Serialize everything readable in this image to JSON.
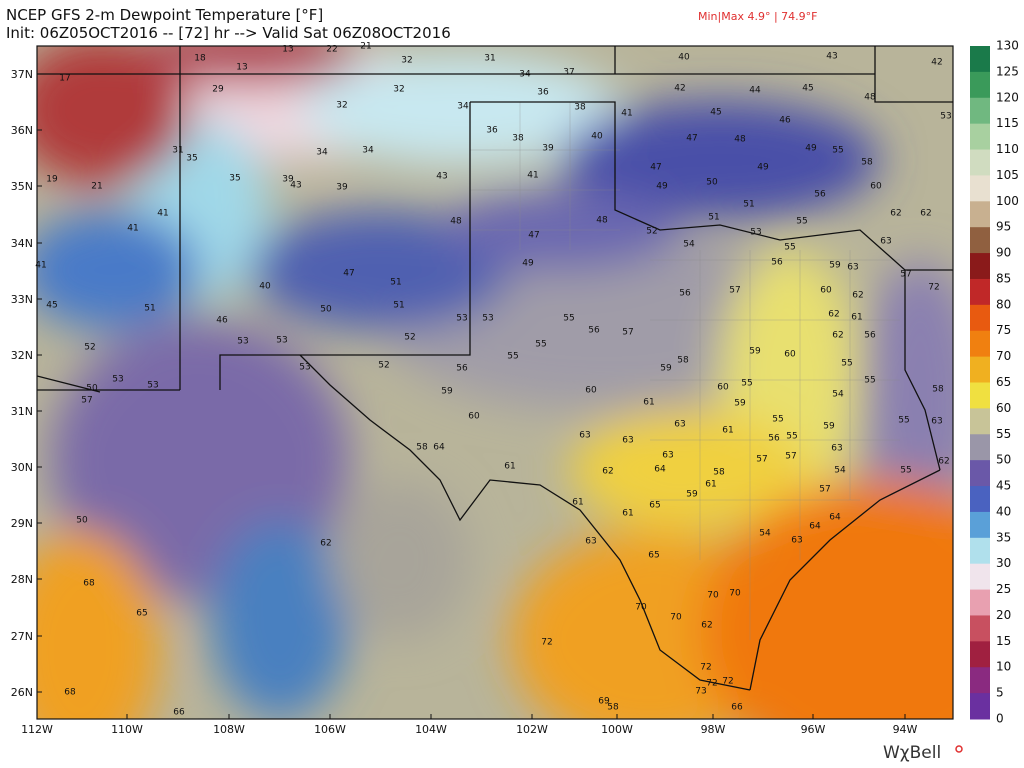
{
  "header": {
    "title": "NCEP GFS 2-m Dewpoint Temperature [°F]",
    "init": "Init: 06Z05OCT2016 -- [72] hr --> Valid Sat 06Z08OCT2016",
    "minmax": "Min|Max 4.9° | 74.9°F"
  },
  "lat_labels": [
    "37N",
    "36N",
    "35N",
    "34N",
    "33N",
    "32N",
    "31N",
    "30N",
    "29N",
    "28N",
    "27N",
    "26N"
  ],
  "lon_labels": [
    "112W",
    "110W",
    "108W",
    "106W",
    "104W",
    "102W",
    "100W",
    "98W",
    "96W",
    "94W"
  ],
  "colorbar": {
    "labels": [
      130,
      125,
      120,
      115,
      110,
      105,
      100,
      95,
      90,
      85,
      80,
      75,
      70,
      65,
      60,
      55,
      50,
      45,
      40,
      35,
      30,
      25,
      20,
      15,
      10,
      5,
      0
    ],
    "colors": [
      "#1a7a4a",
      "#3a9a5a",
      "#70b880",
      "#a8d0a0",
      "#d0dcc0",
      "#e8e0d0",
      "#c8b090",
      "#906040",
      "#8a1a1a",
      "#c02828",
      "#e85a10",
      "#f08010",
      "#f0b020",
      "#f0e040",
      "#c8c498",
      "#9a96a8",
      "#6a58a8",
      "#4a62c0",
      "#5aa0d8",
      "#b0e0ec",
      "#f0e4ec",
      "#e8a0b0",
      "#c85060",
      "#a02040",
      "#8a2a80",
      "#6a30a0"
    ]
  },
  "stations": [
    17,
    18,
    13,
    13,
    22,
    21,
    32,
    31,
    40,
    43,
    42,
    29,
    32,
    34,
    37,
    36,
    42,
    44,
    45,
    48,
    32,
    34,
    38,
    41,
    45,
    46,
    53,
    36,
    38,
    40,
    47,
    48,
    49,
    55,
    31,
    35,
    34,
    34,
    39,
    19,
    21,
    35,
    39,
    43,
    39,
    43,
    41,
    47,
    50,
    49,
    58,
    60,
    56,
    41,
    41,
    48,
    49,
    51,
    51,
    55,
    62,
    62,
    47,
    48,
    52,
    54,
    53,
    55,
    63,
    41,
    49,
    56,
    59,
    63,
    57,
    47,
    40,
    51,
    56,
    57,
    60,
    62,
    72,
    45,
    51,
    46,
    50,
    51,
    53,
    53,
    55,
    56,
    57,
    62,
    61,
    52,
    53,
    53,
    55,
    62,
    56,
    52,
    53,
    52,
    56,
    55,
    58,
    59,
    60,
    59,
    55,
    53,
    53,
    50,
    57,
    59,
    60,
    60,
    55,
    54,
    55,
    58,
    60,
    61,
    59,
    55,
    55,
    63,
    63,
    63,
    63,
    61,
    56,
    55,
    59,
    58,
    64,
    63,
    57,
    57,
    63,
    61,
    62,
    64,
    58,
    54,
    55,
    62,
    61,
    59,
    57,
    50,
    61,
    61,
    65,
    64,
    64,
    54,
    62,
    63,
    65,
    63,
    68,
    70,
    70,
    70,
    70,
    62,
    65,
    72,
    72,
    72,
    72,
    73,
    66,
    68,
    66,
    69,
    58
  ],
  "logo": "WχBell"
}
